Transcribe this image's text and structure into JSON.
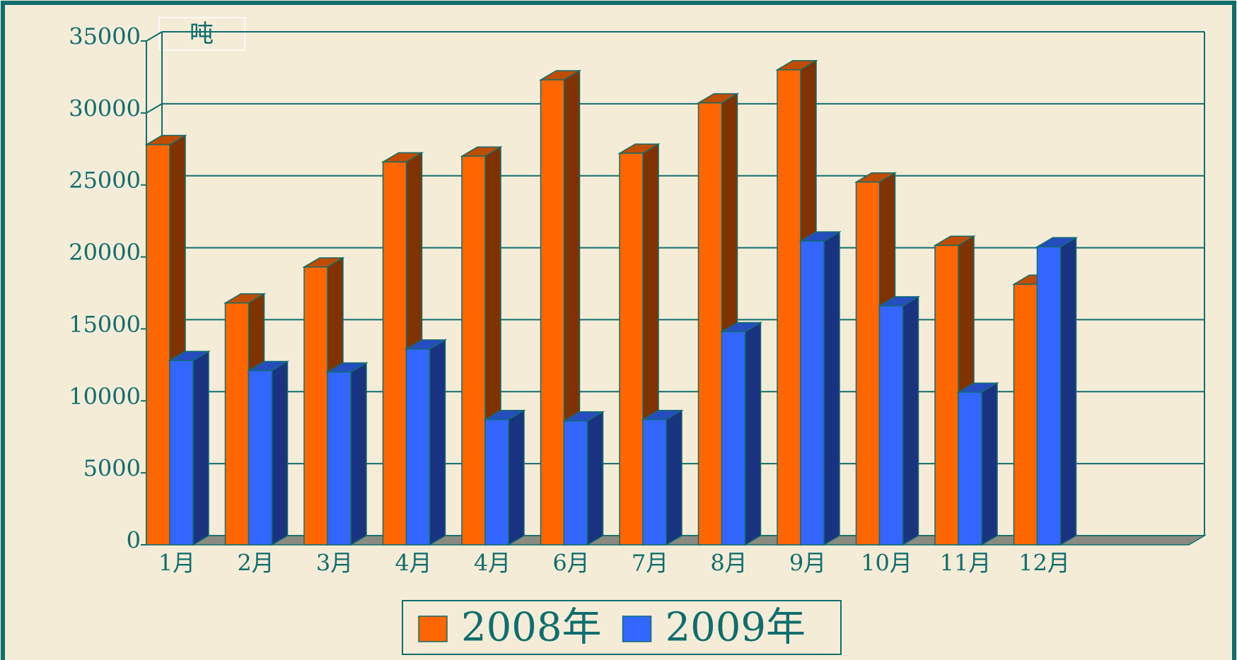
{
  "chart_data": {
    "type": "bar",
    "unit_label": "吨",
    "categories": [
      "1月",
      "2月",
      "3月",
      "4月",
      "4月",
      "6月",
      "7月",
      "8月",
      "9月",
      "10月",
      "11月",
      "12月"
    ],
    "series": [
      {
        "name": "2008年",
        "color": "#ff6600",
        "values": [
          27800,
          16800,
          19300,
          26600,
          27000,
          32300,
          27200,
          30700,
          33000,
          25200,
          20800,
          18100
        ]
      },
      {
        "name": "2009年",
        "color": "#3366ff",
        "values": [
          12800,
          12100,
          12000,
          13600,
          8700,
          8600,
          8700,
          14800,
          21100,
          16600,
          10600,
          20700
        ]
      }
    ],
    "ylim": [
      0,
      35000
    ],
    "yticks": [
      0,
      5000,
      10000,
      15000,
      20000,
      25000,
      30000,
      35000
    ],
    "grid": true,
    "legend": "bottom"
  }
}
